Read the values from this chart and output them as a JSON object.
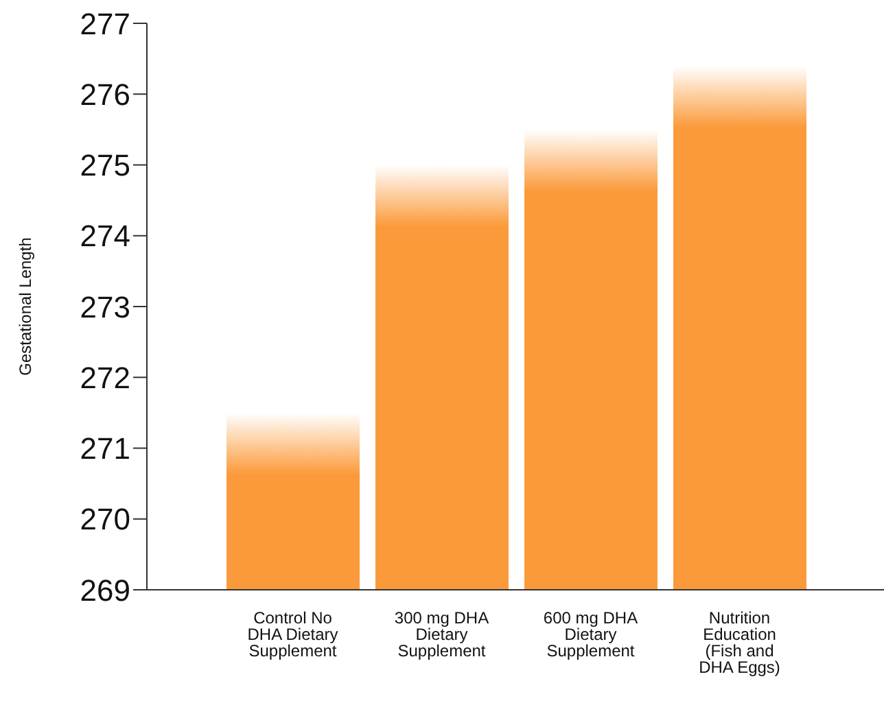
{
  "chart_data": {
    "type": "bar",
    "ylabel": "Gestational Length",
    "categories": [
      "Control No DHA Dietary Supplement",
      "300 mg DHA Dietary Supplement",
      "600 mg DHA Dietary Supplement",
      "Nutrition Education (Fish and DHA Eggs)"
    ],
    "values": [
      271.5,
      275.0,
      275.5,
      276.4
    ],
    "color": "#fb9a3a",
    "ylim": [
      269,
      277
    ],
    "yticks": [
      269,
      270,
      271,
      272,
      273,
      274,
      275,
      276,
      277
    ],
    "grid": false,
    "legend": false
  }
}
